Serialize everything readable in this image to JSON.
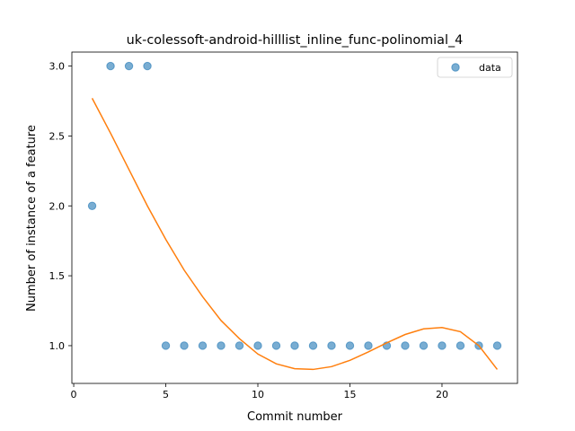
{
  "chart_data": {
    "type": "scatter",
    "title": "uk-colessoft-android-hilllist_inline_func-polinomial_4",
    "xlabel": "Commit number",
    "ylabel": "Number of instance of a feature",
    "xlim": [
      -0.1,
      24.1
    ],
    "ylim": [
      0.73,
      3.1
    ],
    "xticks": [
      0,
      5,
      10,
      15,
      20
    ],
    "xtick_labels": [
      "0",
      "5",
      "10",
      "15",
      "20"
    ],
    "yticks": [
      1.0,
      1.5,
      2.0,
      2.5,
      3.0
    ],
    "ytick_labels": [
      "1.0",
      "1.5",
      "2.0",
      "2.5",
      "3.0"
    ],
    "grid": false,
    "legend_position": "top-right",
    "series": [
      {
        "name": "data",
        "kind": "scatter",
        "color": "#1f77b4",
        "x": [
          1,
          2,
          3,
          4,
          5,
          6,
          7,
          8,
          9,
          10,
          11,
          12,
          13,
          14,
          15,
          16,
          17,
          18,
          19,
          20,
          21,
          22,
          23
        ],
        "y": [
          2,
          3,
          3,
          3,
          1,
          1,
          1,
          1,
          1,
          1,
          1,
          1,
          1,
          1,
          1,
          1,
          1,
          1,
          1,
          1,
          1,
          1,
          1
        ]
      },
      {
        "kind": "line",
        "color": "#ff7f0e",
        "x": [
          1,
          2,
          3,
          4,
          5,
          6,
          7,
          8,
          9,
          10,
          11,
          12,
          13,
          14,
          15,
          16,
          17,
          18,
          19,
          20,
          21,
          22,
          23
        ],
        "y": [
          2.77,
          2.52,
          2.26,
          2.0,
          1.76,
          1.54,
          1.35,
          1.18,
          1.05,
          0.94,
          0.87,
          0.835,
          0.83,
          0.85,
          0.895,
          0.955,
          1.02,
          1.08,
          1.12,
          1.13,
          1.1,
          1.0,
          0.83
        ]
      }
    ]
  }
}
